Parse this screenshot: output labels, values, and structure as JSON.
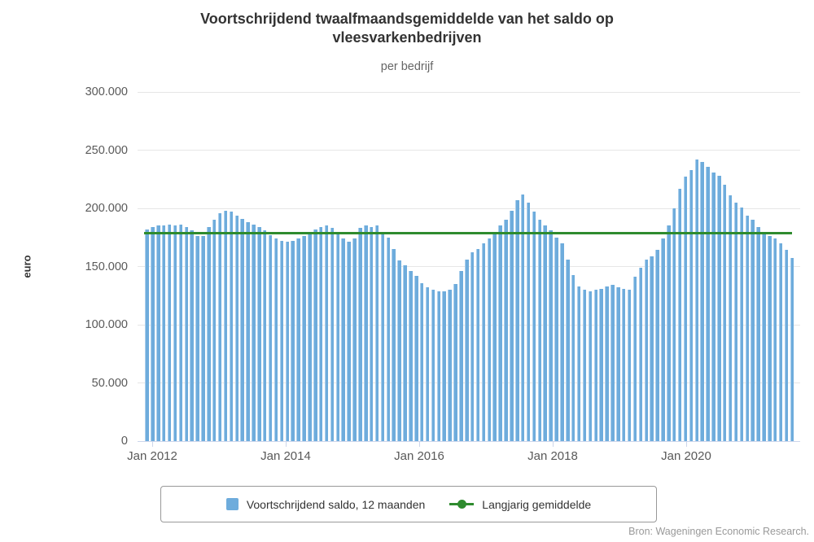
{
  "header": {
    "title": "Voortschrijdend twaalfmaandsgemiddelde van het saldo op vleesvarkenbedrijven",
    "title_line1": "Voortschrijdend twaalfmaandsgemiddelde van het saldo op",
    "title_line2": "vleesvarkenbedrijven",
    "subtitle": "per bedrijf"
  },
  "legend": {
    "items": [
      {
        "label": "Voortschrijdend saldo, 12 maanden",
        "marker": "square",
        "color": "#6EACDC"
      },
      {
        "label": "Langjarig gemiddelde",
        "marker": "line-dot",
        "color": "#2E8B2E"
      }
    ]
  },
  "footer": {
    "source": "Bron: Wageningen Economic Research."
  },
  "chart_data": {
    "type": "bar",
    "title": "Voortschrijdend twaalfmaandsgemiddelde van het saldo op vleesvarkenbedrijven",
    "subtitle": "per bedrijf",
    "ylabel": "euro",
    "xlabel": "",
    "ylim": [
      0,
      300000
    ],
    "grid": "horizontal",
    "legend_position": "bottom",
    "x_start": "Jan 2012",
    "x_end": "Aug 2021",
    "x_step": "month",
    "yticks": [
      {
        "value": 0,
        "label": "0"
      },
      {
        "value": 50000,
        "label": "50.000"
      },
      {
        "value": 100000,
        "label": "100.000"
      },
      {
        "value": 150000,
        "label": "150.000"
      },
      {
        "value": 200000,
        "label": "200.000"
      },
      {
        "value": 250000,
        "label": "250.000"
      },
      {
        "value": 300000,
        "label": "300.000"
      }
    ],
    "xticks": [
      {
        "label": "Jan 2012",
        "month_index": 0
      },
      {
        "label": "Jan 2014",
        "month_index": 24
      },
      {
        "label": "Jan 2016",
        "month_index": 48
      },
      {
        "label": "Jan 2018",
        "month_index": 72
      },
      {
        "label": "Jan 2020",
        "month_index": 96
      }
    ],
    "series": [
      {
        "name": "Voortschrijdend saldo, 12 maanden",
        "type": "column",
        "color": "#6EACDC",
        "values": [
          182000,
          184000,
          185000,
          185000,
          186000,
          185000,
          186000,
          184000,
          181000,
          176000,
          176000,
          184000,
          190000,
          196000,
          198000,
          197000,
          194000,
          191000,
          188000,
          186000,
          184000,
          181000,
          177000,
          174000,
          172000,
          171000,
          172000,
          174000,
          176000,
          179000,
          182000,
          184000,
          185000,
          183000,
          178000,
          174000,
          171000,
          174000,
          183000,
          185000,
          184000,
          185000,
          180000,
          175000,
          165000,
          155000,
          151000,
          146000,
          142000,
          136000,
          132000,
          130000,
          129000,
          129000,
          130000,
          135000,
          146000,
          156000,
          162000,
          165000,
          170000,
          174000,
          180000,
          185000,
          190000,
          198000,
          207000,
          212000,
          205000,
          197000,
          190000,
          185000,
          181000,
          175000,
          170000,
          156000,
          143000,
          133000,
          130000,
          129000,
          130000,
          131000,
          133000,
          134000,
          132000,
          131000,
          130000,
          141000,
          149000,
          156000,
          159000,
          164000,
          174000,
          185000,
          200000,
          217000,
          227000,
          233000,
          242000,
          240000,
          236000,
          231000,
          228000,
          220000,
          211000,
          205000,
          201000,
          194000,
          190000,
          184000,
          179000,
          176000,
          174000,
          170000,
          164000,
          157000
        ]
      },
      {
        "name": "Langjarig gemiddelde",
        "type": "line",
        "color": "#2E8B2E",
        "value": 179000
      }
    ],
    "source": "Bron: Wageningen Economic Research."
  }
}
